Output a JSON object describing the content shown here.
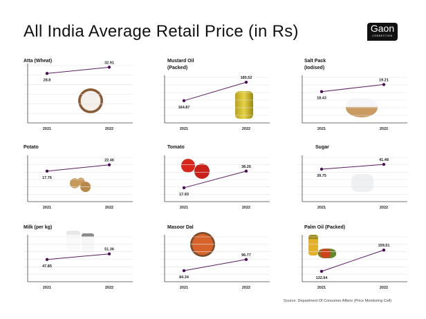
{
  "title": "All India Average Retail Price (in Rs)",
  "logo": {
    "main": "Gaon",
    "sub": "CONNECTION"
  },
  "source": "Source: Department Of Consumer Affairs  (Price Monitoring Cell)",
  "colors": {
    "line": "#5a1a5e",
    "point": "#4b0f55",
    "grid": "#e4e4e4",
    "axis": "#444444"
  },
  "chart_data": [
    {
      "type": "line",
      "title": "Atta (Wheat)",
      "categories": [
        "2021",
        "2022"
      ],
      "values": [
        28.8,
        32.91
      ],
      "labels": [
        "28.8",
        "32.91"
      ],
      "ylim": [
        -4,
        34
      ],
      "grid": true
    },
    {
      "type": "line",
      "title": "Mustard Oil (Packed)",
      "categories": [
        "2021",
        "2022"
      ],
      "values": [
        164.87,
        185.52
      ],
      "labels": [
        "164.87",
        "185.52"
      ],
      "ylim": [
        140,
        191
      ],
      "grid": true
    },
    {
      "type": "line",
      "title": "Salt Pack (Iodised)",
      "categories": [
        "2021",
        "2022"
      ],
      "values": [
        18.43,
        19.21
      ],
      "labels": [
        "18.43",
        "19.21"
      ],
      "ylim": [
        15,
        20
      ],
      "grid": true
    },
    {
      "type": "line",
      "title": "Potato",
      "categories": [
        "2021",
        "2022"
      ],
      "values": [
        17.76,
        22.46
      ],
      "labels": [
        "17.76",
        "22.46"
      ],
      "ylim": [
        -5,
        28
      ],
      "grid": true
    },
    {
      "type": "line",
      "title": "Tomato",
      "categories": [
        "2021",
        "2022"
      ],
      "values": [
        17.93,
        38.26
      ],
      "labels": [
        "17.93",
        "38.26"
      ],
      "ylim": [
        1,
        55
      ],
      "grid": true
    },
    {
      "type": "line",
      "title": "Sugar",
      "categories": [
        "2021",
        "2022"
      ],
      "values": [
        39.75,
        41.48
      ],
      "labels": [
        "39.75",
        "41.48"
      ],
      "ylim": [
        28,
        44
      ],
      "grid": true
    },
    {
      "type": "line",
      "title": "Milk (per kg)",
      "categories": [
        "2021",
        "2022"
      ],
      "values": [
        47.85,
        51.36
      ],
      "labels": [
        "47.85",
        "51.36"
      ],
      "ylim": [
        34,
        62
      ],
      "grid": true
    },
    {
      "type": "line",
      "title": "Masoor Dal",
      "categories": [
        "2021",
        "2022"
      ],
      "values": [
        84.34,
        96.77
      ],
      "labels": [
        "84.34",
        "96.77"
      ],
      "ylim": [
        72,
        122
      ],
      "grid": true
    },
    {
      "type": "line",
      "title": "Palm Oil (Packed)",
      "categories": [
        "2021",
        "2022"
      ],
      "values": [
        132.94,
        159.51
      ],
      "labels": [
        "132.94",
        "159.51"
      ],
      "ylim": [
        120,
        176
      ],
      "grid": true
    }
  ]
}
